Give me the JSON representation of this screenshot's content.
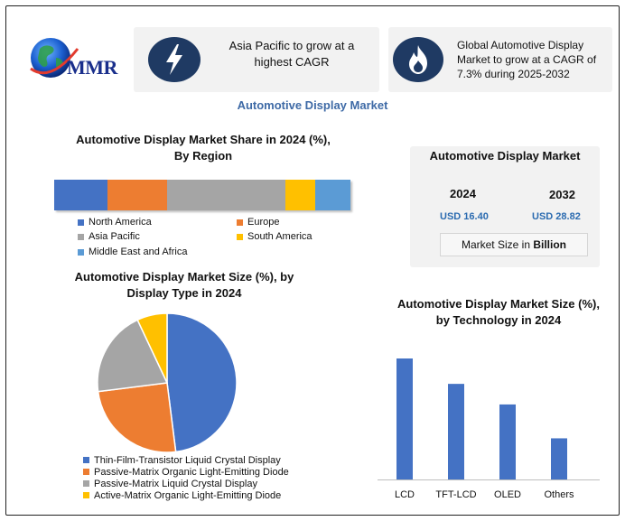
{
  "logo": {
    "text": "MMR"
  },
  "cards": [
    {
      "text": "Asia Pacific to grow at a highest CAGR",
      "icon": "lightning-bolt-icon"
    },
    {
      "text": "Global Automotive Display Market to grow at a CAGR of 7.3% during 2025-2032",
      "icon": "flame-icon"
    }
  ],
  "main_title": "Automotive Display Market",
  "market_box": {
    "title": "Automotive Display Market",
    "year1": "2024",
    "value1": "USD 16.40",
    "year2": "2032",
    "value2": "USD 28.82",
    "size_label_prefix": "Market Size in",
    "size_label_unit": "Billion"
  },
  "colors": {
    "blue": "#4472c4",
    "orange": "#ed7d31",
    "gray": "#a5a5a5",
    "yellow": "#ffc000",
    "lightblue": "#5b9bd5",
    "accent_title": "#3e6aa6",
    "icon_circle": "#1f3a63"
  },
  "chart_data": [
    {
      "type": "bar",
      "orientation": "horizontal-stacked",
      "title_line1": "Automotive Display Market Share in 2024 (%),",
      "title_line2": "By Region",
      "series": [
        {
          "name": "North America",
          "value": 18,
          "color": "#4472c4"
        },
        {
          "name": "Europe",
          "value": 20,
          "color": "#ed7d31"
        },
        {
          "name": "Asia Pacific",
          "value": 40,
          "color": "#a5a5a5"
        },
        {
          "name": "South America",
          "value": 10,
          "color": "#ffc000"
        },
        {
          "name": "Middle East and Africa",
          "value": 12,
          "color": "#5b9bd5"
        }
      ]
    },
    {
      "type": "pie",
      "title_line1": "Automotive Display Market Size (%), by",
      "title_line2": "Display Type in 2024",
      "slices": [
        {
          "name": "Thin-Film-Transistor Liquid Crystal Display",
          "value": 48,
          "color": "#4472c4"
        },
        {
          "name": "Passive-Matrix Organic Light-Emitting Diode",
          "value": 25,
          "color": "#ed7d31"
        },
        {
          "name": "Passive-Matrix Liquid Crystal Display",
          "value": 20,
          "color": "#a5a5a5"
        },
        {
          "name": "Active-Matrix Organic Light-Emitting Diode",
          "value": 7,
          "color": "#ffc000"
        }
      ]
    },
    {
      "type": "bar",
      "title_line1": "Automotive Display Market Size (%),",
      "title_line2": "by Technology in 2024",
      "categories": [
        "LCD",
        "TFT-LCD",
        "OLED",
        "Others"
      ],
      "values": [
        100,
        79,
        62,
        34
      ],
      "ylim": [
        0,
        100
      ],
      "color": "#4472c4"
    }
  ]
}
